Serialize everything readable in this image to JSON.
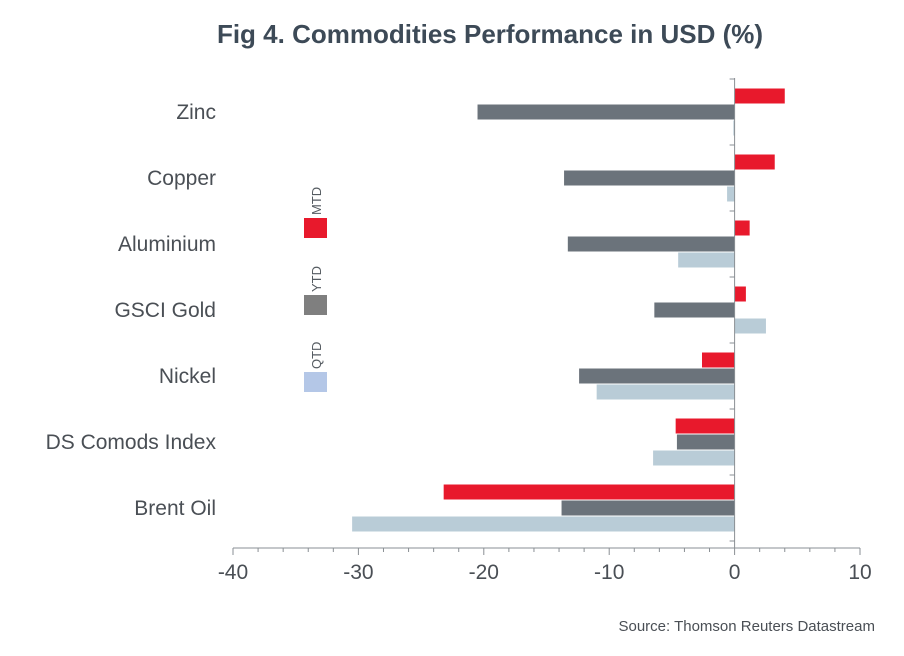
{
  "chart_data": {
    "type": "bar",
    "orientation": "horizontal",
    "title": "Fig 4. Commodities Performance in USD (%)",
    "source": "Source: Thomson Reuters Datastream",
    "categories": [
      "Zinc",
      "Copper",
      "Aluminium",
      "GSCI Gold",
      "Nickel",
      "DS Comods Index",
      "Brent Oil"
    ],
    "series": [
      {
        "name": "MTD",
        "color": "#e8192c",
        "values": [
          4.0,
          3.2,
          1.2,
          0.9,
          -2.6,
          -4.7,
          -23.2
        ]
      },
      {
        "name": "YTD",
        "color": "#6b737b",
        "values": [
          -20.5,
          -13.6,
          -13.3,
          -6.4,
          -12.4,
          -4.6,
          -13.8
        ]
      },
      {
        "name": "QTD",
        "color": "#b9ccd7",
        "values": [
          -0.1,
          -0.6,
          -4.5,
          2.5,
          -11.0,
          -6.5,
          -30.5
        ]
      }
    ],
    "legend": [
      {
        "name": "MTD",
        "color": "#e8192c"
      },
      {
        "name": "YTD",
        "color": "#7f7f7f"
      },
      {
        "name": "QTD",
        "color": "#b4c7e7"
      }
    ],
    "xlim": [
      -40,
      10
    ],
    "xticks": [
      -40,
      -30,
      -20,
      -10,
      0,
      10
    ],
    "xtick_labels": [
      "-40",
      "-30",
      "-20",
      "-10",
      "0",
      "10"
    ],
    "xlabel": "",
    "ylabel": "",
    "grid": false,
    "legend_position": "left, vertical labels"
  }
}
